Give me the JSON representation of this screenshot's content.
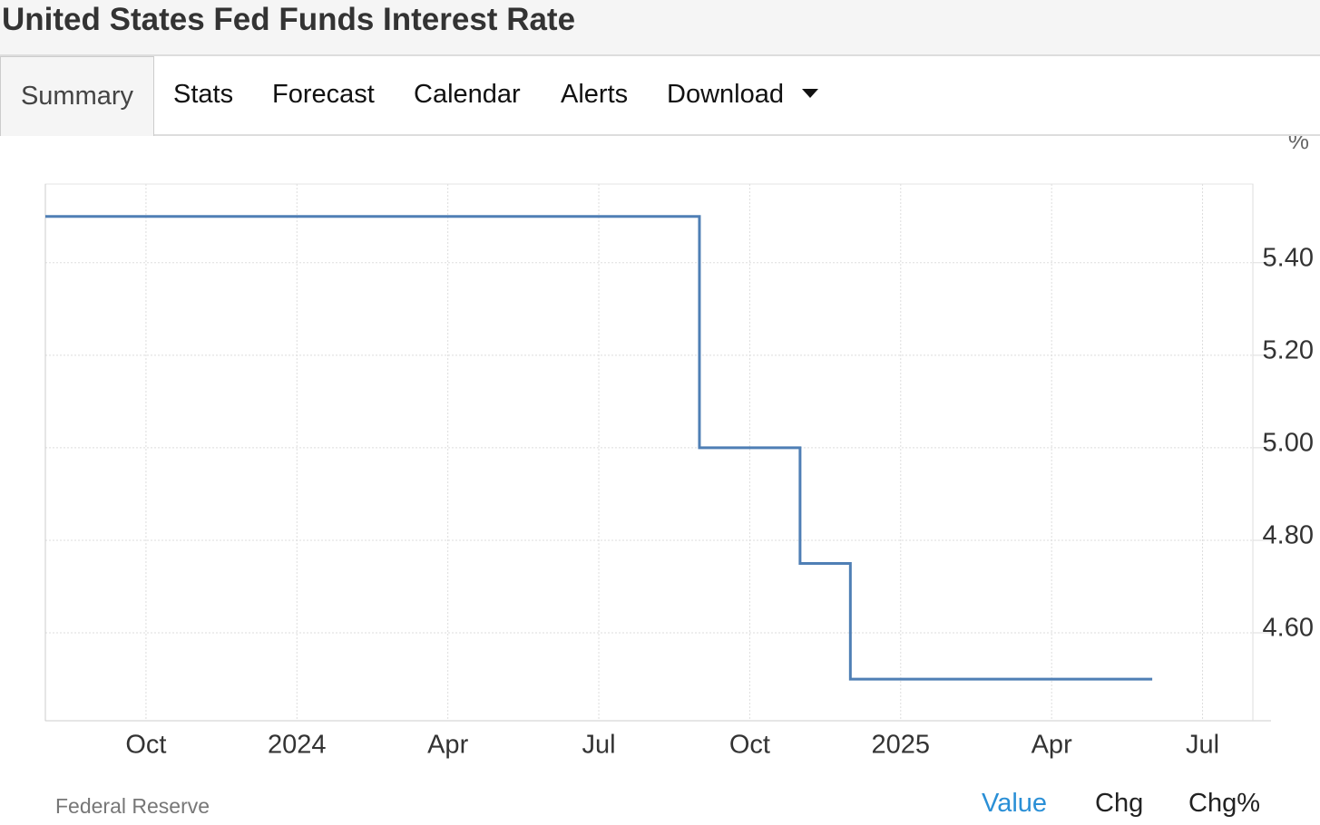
{
  "header": {
    "title": "United States Fed Funds Interest Rate"
  },
  "tabs": [
    "Summary",
    "Stats",
    "Forecast",
    "Calendar",
    "Alerts",
    "Download"
  ],
  "chart_data": {
    "type": "line",
    "step": true,
    "unit": "%",
    "color": "#4f7fb5",
    "grid": true,
    "x": [
      "2023-08",
      "2024-09",
      "2024-11",
      "2024-12",
      "2025-06"
    ],
    "values": [
      5.5,
      5.0,
      4.75,
      4.5,
      4.5
    ],
    "xlim": [
      "2023-08",
      "2025-08"
    ],
    "xticks": [
      {
        "value": "2023-10",
        "label": "Oct"
      },
      {
        "value": "2024-01",
        "label": "2024"
      },
      {
        "value": "2024-04",
        "label": "Apr"
      },
      {
        "value": "2024-07",
        "label": "Jul"
      },
      {
        "value": "2024-10",
        "label": "Oct"
      },
      {
        "value": "2025-01",
        "label": "2025"
      },
      {
        "value": "2025-04",
        "label": "Apr"
      },
      {
        "value": "2025-07",
        "label": "Jul"
      }
    ],
    "ylim": [
      4.41,
      5.57
    ],
    "yticks": [
      {
        "value": 4.6,
        "label": "4.60"
      },
      {
        "value": 4.8,
        "label": "4.80"
      },
      {
        "value": 5.0,
        "label": "5.00"
      },
      {
        "value": 5.2,
        "label": "5.20"
      },
      {
        "value": 5.4,
        "label": "5.40"
      }
    ]
  },
  "footer": {
    "source": "Federal Reserve",
    "toggles": [
      "Value",
      "Chg",
      "Chg%"
    ]
  }
}
